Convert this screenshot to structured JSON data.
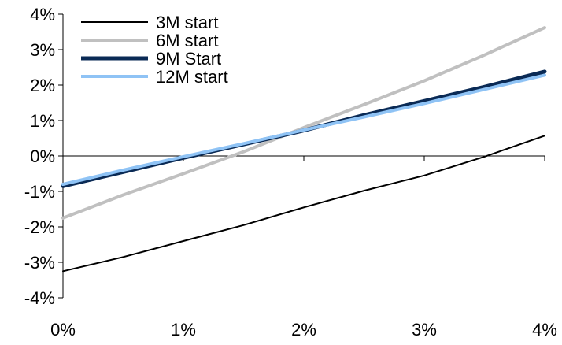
{
  "chart_data": {
    "type": "line",
    "x": [
      0,
      0.5,
      1,
      1.5,
      2,
      2.5,
      3,
      3.5,
      4
    ],
    "xlim": [
      0,
      4
    ],
    "ylim": [
      -4,
      4
    ],
    "x_ticks": [
      0,
      1,
      2,
      3,
      4
    ],
    "y_ticks": [
      4,
      3,
      2,
      1,
      0,
      -1,
      -2,
      -3,
      -4
    ],
    "x_tick_labels": [
      "0%",
      "1%",
      "2%",
      "3%",
      "4%"
    ],
    "y_tick_labels": [
      "4%",
      "3%",
      "2%",
      "1%",
      "0%",
      "-1%",
      "-2%",
      "-3%",
      "-4%"
    ],
    "grid": false,
    "legend": "top-left",
    "series": [
      {
        "name": "3M start",
        "color": "#000000",
        "values": [
          -3.25,
          -2.85,
          -2.4,
          -1.95,
          -1.45,
          -0.98,
          -0.55,
          -0.02,
          0.57
        ]
      },
      {
        "name": "6M start",
        "color": "#c0c0c0",
        "values": [
          -1.75,
          -1.1,
          -0.5,
          0.12,
          0.8,
          1.45,
          2.12,
          2.85,
          3.62
        ]
      },
      {
        "name": "9M Start",
        "color": "#0a2a55",
        "values": [
          -0.85,
          -0.45,
          -0.05,
          0.33,
          0.72,
          1.15,
          1.55,
          1.95,
          2.38
        ]
      },
      {
        "name": "12M start",
        "color": "#8fc3f5",
        "values": [
          -0.8,
          -0.4,
          -0.02,
          0.35,
          0.73,
          1.1,
          1.48,
          1.88,
          2.28
        ]
      }
    ]
  }
}
